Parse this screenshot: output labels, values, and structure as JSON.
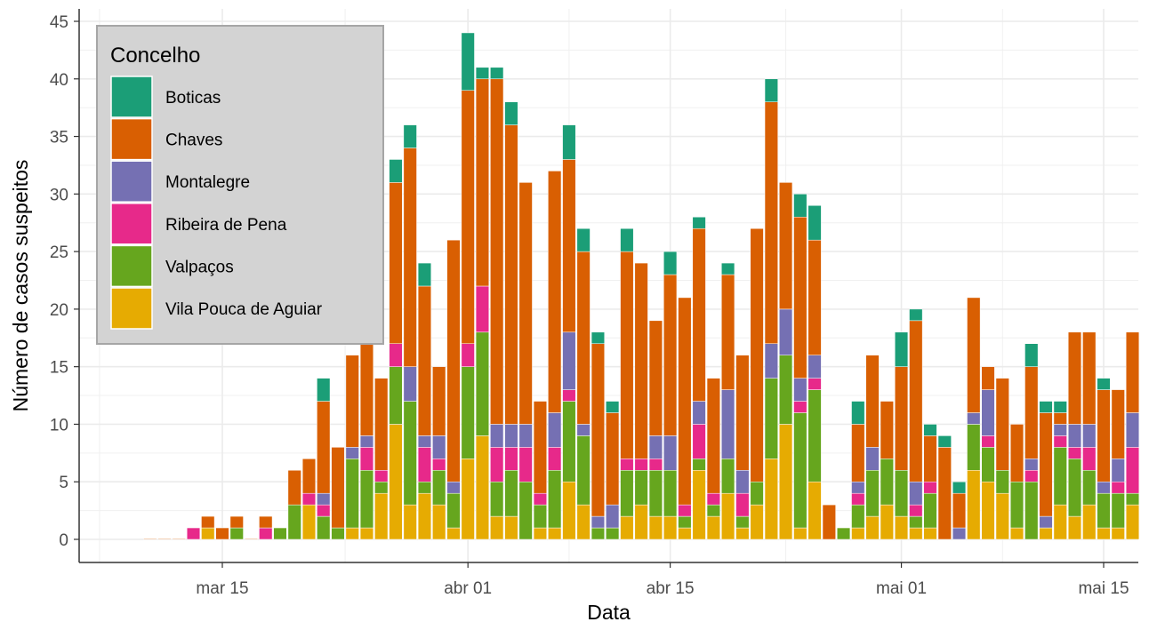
{
  "chart_data": {
    "type": "bar",
    "stacked": true,
    "xlabel": "Data",
    "ylabel": "Número de casos suspeitos",
    "ylim": [
      0,
      45
    ],
    "yticks": [
      0,
      5,
      10,
      15,
      20,
      25,
      30,
      35,
      40,
      45
    ],
    "x_tick_labels": [
      "mar 15",
      "abr 01",
      "abr 15",
      "mai 01",
      "mai 15"
    ],
    "x_tick_dates": [
      "2020-03-15",
      "2020-04-01",
      "2020-04-15",
      "2020-05-01",
      "2020-05-15"
    ],
    "grid": true,
    "legend": {
      "title": "Concelho",
      "placement": "top-left"
    },
    "series": [
      {
        "name": "Boticas",
        "color": "#1b9e77"
      },
      {
        "name": "Chaves",
        "color": "#d95f02"
      },
      {
        "name": "Montalegre",
        "color": "#7570b3"
      },
      {
        "name": "Ribeira de Pena",
        "color": "#e7298a"
      },
      {
        "name": "Valpaços",
        "color": "#66a61e"
      },
      {
        "name": "Vila Pouca de Aguiar",
        "color": "#e6ab02"
      }
    ],
    "stack_order": [
      "Vila Pouca de Aguiar",
      "Valpaços",
      "Ribeira de Pena",
      "Montalegre",
      "Chaves",
      "Boticas"
    ],
    "data": [
      {
        "date": "2020-03-10",
        "Chaves": 0
      },
      {
        "date": "2020-03-11",
        "Chaves": 0
      },
      {
        "date": "2020-03-12",
        "Chaves": 0
      },
      {
        "date": "2020-03-13",
        "Ribeira de Pena": 1
      },
      {
        "date": "2020-03-14",
        "Vila Pouca de Aguiar": 1,
        "Chaves": 1
      },
      {
        "date": "2020-03-15",
        "Chaves": 1
      },
      {
        "date": "2020-03-16",
        "Valpaços": 1,
        "Chaves": 1
      },
      {
        "date": "2020-03-17",
        "Chaves": 0
      },
      {
        "date": "2020-03-18",
        "Ribeira de Pena": 1,
        "Chaves": 1
      },
      {
        "date": "2020-03-19",
        "Valpaços": 1
      },
      {
        "date": "2020-03-20",
        "Valpaços": 3,
        "Chaves": 3
      },
      {
        "date": "2020-03-21",
        "Vila Pouca de Aguiar": 3,
        "Ribeira de Pena": 1,
        "Chaves": 3
      },
      {
        "date": "2020-03-22",
        "Valpaços": 2,
        "Ribeira de Pena": 1,
        "Montalegre": 1,
        "Chaves": 8,
        "Boticas": 2
      },
      {
        "date": "2020-03-23",
        "Valpaços": 1,
        "Chaves": 7
      },
      {
        "date": "2020-03-24",
        "Vila Pouca de Aguiar": 1,
        "Valpaços": 6,
        "Montalegre": 1,
        "Chaves": 8
      },
      {
        "date": "2020-03-25",
        "Vila Pouca de Aguiar": 1,
        "Valpaços": 5,
        "Ribeira de Pena": 2,
        "Montalegre": 1,
        "Chaves": 8
      },
      {
        "date": "2020-03-26",
        "Vila Pouca de Aguiar": 4,
        "Valpaços": 1,
        "Ribeira de Pena": 1,
        "Chaves": 8
      },
      {
        "date": "2020-03-27",
        "Vila Pouca de Aguiar": 10,
        "Valpaços": 5,
        "Ribeira de Pena": 2,
        "Chaves": 14,
        "Boticas": 2
      },
      {
        "date": "2020-03-28",
        "Vila Pouca de Aguiar": 3,
        "Valpaços": 9,
        "Montalegre": 3,
        "Chaves": 19,
        "Boticas": 2
      },
      {
        "date": "2020-03-29",
        "Vila Pouca de Aguiar": 4,
        "Valpaços": 1,
        "Ribeira de Pena": 3,
        "Montalegre": 1,
        "Chaves": 13,
        "Boticas": 2
      },
      {
        "date": "2020-03-30",
        "Vila Pouca de Aguiar": 3,
        "Valpaços": 3,
        "Ribeira de Pena": 1,
        "Montalegre": 2,
        "Chaves": 6
      },
      {
        "date": "2020-03-31",
        "Vila Pouca de Aguiar": 1,
        "Valpaços": 3,
        "Montalegre": 1,
        "Chaves": 21
      },
      {
        "date": "2020-04-01",
        "Vila Pouca de Aguiar": 7,
        "Valpaços": 8,
        "Ribeira de Pena": 2,
        "Chaves": 22,
        "Boticas": 5
      },
      {
        "date": "2020-04-02",
        "Vila Pouca de Aguiar": 9,
        "Valpaços": 9,
        "Ribeira de Pena": 4,
        "Chaves": 18,
        "Boticas": 1
      },
      {
        "date": "2020-04-03",
        "Vila Pouca de Aguiar": 2,
        "Valpaços": 3,
        "Ribeira de Pena": 3,
        "Montalegre": 2,
        "Chaves": 30,
        "Boticas": 1
      },
      {
        "date": "2020-04-04",
        "Vila Pouca de Aguiar": 2,
        "Valpaços": 4,
        "Ribeira de Pena": 2,
        "Montalegre": 2,
        "Chaves": 26,
        "Boticas": 2
      },
      {
        "date": "2020-04-05",
        "Valpaços": 5,
        "Ribeira de Pena": 3,
        "Montalegre": 2,
        "Chaves": 21
      },
      {
        "date": "2020-04-06",
        "Vila Pouca de Aguiar": 1,
        "Valpaços": 2,
        "Ribeira de Pena": 1,
        "Chaves": 8
      },
      {
        "date": "2020-04-07",
        "Vila Pouca de Aguiar": 1,
        "Valpaços": 5,
        "Ribeira de Pena": 2,
        "Montalegre": 3,
        "Chaves": 21
      },
      {
        "date": "2020-04-08",
        "Vila Pouca de Aguiar": 5,
        "Valpaços": 7,
        "Ribeira de Pena": 1,
        "Montalegre": 5,
        "Chaves": 15,
        "Boticas": 3
      },
      {
        "date": "2020-04-09",
        "Vila Pouca de Aguiar": 3,
        "Valpaços": 6,
        "Montalegre": 1,
        "Chaves": 15,
        "Boticas": 2
      },
      {
        "date": "2020-04-10",
        "Valpaços": 1,
        "Montalegre": 1,
        "Chaves": 15,
        "Boticas": 1
      },
      {
        "date": "2020-04-11",
        "Valpaços": 1,
        "Montalegre": 2,
        "Chaves": 8,
        "Boticas": 1
      },
      {
        "date": "2020-04-12",
        "Vila Pouca de Aguiar": 2,
        "Valpaços": 4,
        "Ribeira de Pena": 1,
        "Chaves": 18,
        "Boticas": 2
      },
      {
        "date": "2020-04-13",
        "Vila Pouca de Aguiar": 3,
        "Valpaços": 3,
        "Ribeira de Pena": 1,
        "Chaves": 17
      },
      {
        "date": "2020-04-14",
        "Vila Pouca de Aguiar": 2,
        "Valpaços": 4,
        "Ribeira de Pena": 1,
        "Montalegre": 2,
        "Chaves": 10
      },
      {
        "date": "2020-04-15",
        "Vila Pouca de Aguiar": 2,
        "Valpaços": 4,
        "Montalegre": 3,
        "Chaves": 14,
        "Boticas": 2
      },
      {
        "date": "2020-04-16",
        "Vila Pouca de Aguiar": 1,
        "Valpaços": 1,
        "Ribeira de Pena": 1,
        "Chaves": 18
      },
      {
        "date": "2020-04-17",
        "Vila Pouca de Aguiar": 6,
        "Valpaços": 1,
        "Ribeira de Pena": 3,
        "Montalegre": 2,
        "Chaves": 15,
        "Boticas": 1
      },
      {
        "date": "2020-04-18",
        "Vila Pouca de Aguiar": 2,
        "Valpaços": 1,
        "Ribeira de Pena": 1,
        "Chaves": 10
      },
      {
        "date": "2020-04-19",
        "Vila Pouca de Aguiar": 4,
        "Valpaços": 3,
        "Montalegre": 6,
        "Chaves": 10,
        "Boticas": 1
      },
      {
        "date": "2020-04-20",
        "Vila Pouca de Aguiar": 1,
        "Valpaços": 1,
        "Ribeira de Pena": 2,
        "Montalegre": 2,
        "Chaves": 10
      },
      {
        "date": "2020-04-21",
        "Vila Pouca de Aguiar": 3,
        "Valpaços": 2,
        "Chaves": 22
      },
      {
        "date": "2020-04-22",
        "Vila Pouca de Aguiar": 7,
        "Valpaços": 7,
        "Montalegre": 3,
        "Chaves": 21,
        "Boticas": 2
      },
      {
        "date": "2020-04-23",
        "Vila Pouca de Aguiar": 10,
        "Valpaços": 6,
        "Montalegre": 4,
        "Chaves": 11
      },
      {
        "date": "2020-04-24",
        "Vila Pouca de Aguiar": 1,
        "Valpaços": 10,
        "Ribeira de Pena": 1,
        "Montalegre": 2,
        "Chaves": 14,
        "Boticas": 2
      },
      {
        "date": "2020-04-25",
        "Vila Pouca de Aguiar": 5,
        "Valpaços": 8,
        "Ribeira de Pena": 1,
        "Montalegre": 2,
        "Chaves": 10,
        "Boticas": 3
      },
      {
        "date": "2020-04-26",
        "Chaves": 3
      },
      {
        "date": "2020-04-27",
        "Valpaços": 1
      },
      {
        "date": "2020-04-28",
        "Vila Pouca de Aguiar": 1,
        "Valpaços": 2,
        "Ribeira de Pena": 1,
        "Montalegre": 1,
        "Chaves": 5,
        "Boticas": 2
      },
      {
        "date": "2020-04-29",
        "Vila Pouca de Aguiar": 2,
        "Valpaços": 4,
        "Montalegre": 2,
        "Chaves": 8
      },
      {
        "date": "2020-04-30",
        "Vila Pouca de Aguiar": 3,
        "Valpaços": 4,
        "Chaves": 5
      },
      {
        "date": "2020-05-01",
        "Vila Pouca de Aguiar": 2,
        "Valpaços": 4,
        "Chaves": 9,
        "Boticas": 3
      },
      {
        "date": "2020-05-02",
        "Vila Pouca de Aguiar": 1,
        "Valpaços": 1,
        "Ribeira de Pena": 1,
        "Montalegre": 2,
        "Chaves": 14,
        "Boticas": 1
      },
      {
        "date": "2020-05-03",
        "Vila Pouca de Aguiar": 1,
        "Valpaços": 3,
        "Ribeira de Pena": 1,
        "Chaves": 4,
        "Boticas": 1
      },
      {
        "date": "2020-05-04",
        "Chaves": 8,
        "Boticas": 1
      },
      {
        "date": "2020-05-05",
        "Montalegre": 1,
        "Chaves": 3,
        "Boticas": 1
      },
      {
        "date": "2020-05-06",
        "Vila Pouca de Aguiar": 6,
        "Valpaços": 4,
        "Montalegre": 1,
        "Chaves": 10
      },
      {
        "date": "2020-05-07",
        "Vila Pouca de Aguiar": 5,
        "Valpaços": 3,
        "Ribeira de Pena": 1,
        "Montalegre": 4,
        "Chaves": 2
      },
      {
        "date": "2020-05-08",
        "Vila Pouca de Aguiar": 4,
        "Valpaços": 2,
        "Chaves": 8
      },
      {
        "date": "2020-05-09",
        "Vila Pouca de Aguiar": 1,
        "Valpaços": 4,
        "Chaves": 5
      },
      {
        "date": "2020-05-10",
        "Valpaços": 5,
        "Ribeira de Pena": 1,
        "Montalegre": 1,
        "Chaves": 8,
        "Boticas": 2
      },
      {
        "date": "2020-05-11",
        "Vila Pouca de Aguiar": 1,
        "Montalegre": 1,
        "Chaves": 9,
        "Boticas": 1
      },
      {
        "date": "2020-05-12",
        "Vila Pouca de Aguiar": 3,
        "Valpaços": 5,
        "Ribeira de Pena": 1,
        "Montalegre": 1,
        "Chaves": 1,
        "Boticas": 1
      },
      {
        "date": "2020-05-13",
        "Vila Pouca de Aguiar": 2,
        "Valpaços": 5,
        "Ribeira de Pena": 1,
        "Montalegre": 2,
        "Chaves": 8
      },
      {
        "date": "2020-05-14",
        "Vila Pouca de Aguiar": 3,
        "Valpaços": 3,
        "Ribeira de Pena": 2,
        "Montalegre": 2,
        "Chaves": 8
      },
      {
        "date": "2020-05-15",
        "Vila Pouca de Aguiar": 1,
        "Valpaços": 3,
        "Montalegre": 1,
        "Chaves": 8,
        "Boticas": 1
      },
      {
        "date": "2020-05-16",
        "Vila Pouca de Aguiar": 1,
        "Valpaços": 3,
        "Ribeira de Pena": 1,
        "Montalegre": 2,
        "Chaves": 6
      },
      {
        "date": "2020-05-17",
        "Vila Pouca de Aguiar": 3,
        "Valpaços": 1,
        "Ribeira de Pena": 4,
        "Montalegre": 3,
        "Chaves": 7
      }
    ]
  }
}
